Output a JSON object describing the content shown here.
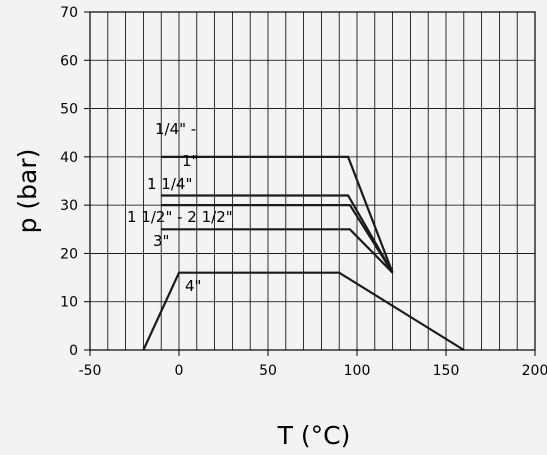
{
  "chart_data": {
    "type": "line",
    "xlabel": "T (°C)",
    "ylabel": "p (bar)",
    "xlim": [
      -50,
      200
    ],
    "ylim": [
      0,
      70
    ],
    "grid": true,
    "x_ticks": [
      -50,
      0,
      50,
      100,
      150,
      200
    ],
    "y_ticks": [
      0,
      10,
      20,
      30,
      40,
      50,
      60,
      70
    ],
    "x_tick_labels": [
      "-50",
      "0",
      "50",
      "100",
      "150",
      "200"
    ],
    "y_tick_labels": [
      "0",
      "10",
      "20",
      "30",
      "40",
      "50",
      "60",
      "70"
    ],
    "series": [
      {
        "name": "1/4\" - 1\"",
        "points": [
          [
            -10,
            40
          ],
          [
            95,
            40
          ],
          [
            120,
            16
          ]
        ]
      },
      {
        "name": "1 1/4\"",
        "points": [
          [
            -10,
            32
          ],
          [
            95,
            32
          ],
          [
            120,
            16
          ]
        ]
      },
      {
        "name": "1 1/2\" - 2 1/2\"",
        "points": [
          [
            -10,
            30
          ],
          [
            96,
            30
          ],
          [
            120,
            16
          ]
        ]
      },
      {
        "name": "3\"",
        "points": [
          [
            -10,
            25
          ],
          [
            96,
            25
          ],
          [
            120,
            16
          ]
        ]
      },
      {
        "name": "4\"",
        "points": [
          [
            -20,
            0
          ],
          [
            0,
            16
          ],
          [
            90,
            16
          ],
          [
            160,
            0
          ]
        ]
      }
    ],
    "annotations": [
      "1/4\" -",
      "1\"",
      "1 1/4\"",
      "1 1/2\" - 2 1/2\"",
      "3\"",
      "4\""
    ]
  }
}
